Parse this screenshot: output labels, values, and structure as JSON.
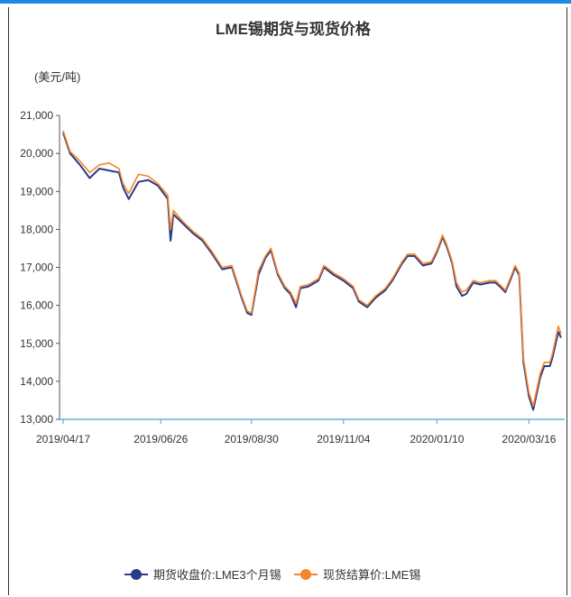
{
  "chart_data": {
    "type": "line",
    "title": "LME锡期货与现货价格",
    "ylabel": "(美元/吨)",
    "ylim": [
      13000,
      21000
    ],
    "yticks": [
      "21,000",
      "20,000",
      "19,000",
      "18,000",
      "17,000",
      "16,000",
      "15,000",
      "14,000",
      "13,000"
    ],
    "xticks": [
      "2019/04/17",
      "2019/06/26",
      "2019/08/30",
      "2019/11/04",
      "2020/01/10",
      "2020/03/16"
    ],
    "legend_position": "bottom",
    "series": [
      {
        "name": "期货收盘价:LME3个月锡",
        "color": "#2b3a85",
        "points": [
          [
            "2019/04/17",
            20550
          ],
          [
            "2019/04/22",
            20000
          ],
          [
            "2019/04/29",
            19700
          ],
          [
            "2019/05/06",
            19350
          ],
          [
            "2019/05/13",
            19600
          ],
          [
            "2019/05/20",
            19550
          ],
          [
            "2019/05/27",
            19500
          ],
          [
            "2019/05/30",
            19100
          ],
          [
            "2019/06/03",
            18800
          ],
          [
            "2019/06/10",
            19250
          ],
          [
            "2019/06/17",
            19300
          ],
          [
            "2019/06/24",
            19150
          ],
          [
            "2019/07/01",
            18800
          ],
          [
            "2019/07/03",
            17700
          ],
          [
            "2019/07/05",
            18400
          ],
          [
            "2019/07/12",
            18150
          ],
          [
            "2019/07/19",
            17900
          ],
          [
            "2019/07/26",
            17700
          ],
          [
            "2019/08/02",
            17350
          ],
          [
            "2019/08/09",
            16950
          ],
          [
            "2019/08/16",
            17000
          ],
          [
            "2019/08/23",
            16200
          ],
          [
            "2019/08/27",
            15800
          ],
          [
            "2019/08/30",
            15750
          ],
          [
            "2019/09/04",
            16800
          ],
          [
            "2019/09/09",
            17250
          ],
          [
            "2019/09/13",
            17450
          ],
          [
            "2019/09/18",
            16800
          ],
          [
            "2019/09/23",
            16450
          ],
          [
            "2019/09/27",
            16300
          ],
          [
            "2019/10/01",
            15950
          ],
          [
            "2019/10/04",
            16450
          ],
          [
            "2019/10/10",
            16500
          ],
          [
            "2019/10/17",
            16650
          ],
          [
            "2019/10/21",
            17000
          ],
          [
            "2019/10/28",
            16800
          ],
          [
            "2019/11/04",
            16650
          ],
          [
            "2019/11/11",
            16450
          ],
          [
            "2019/11/15",
            16100
          ],
          [
            "2019/11/21",
            15950
          ],
          [
            "2019/11/27",
            16200
          ],
          [
            "2019/12/04",
            16400
          ],
          [
            "2019/12/09",
            16650
          ],
          [
            "2019/12/16",
            17100
          ],
          [
            "2019/12/20",
            17300
          ],
          [
            "2019/12/25",
            17300
          ],
          [
            "2019/12/31",
            17050
          ],
          [
            "2020/01/06",
            17100
          ],
          [
            "2020/01/10",
            17400
          ],
          [
            "2020/01/14",
            17800
          ],
          [
            "2020/01/17",
            17550
          ],
          [
            "2020/01/21",
            17100
          ],
          [
            "2020/01/24",
            16500
          ],
          [
            "2020/01/28",
            16250
          ],
          [
            "2020/01/31",
            16300
          ],
          [
            "2020/02/05",
            16600
          ],
          [
            "2020/02/10",
            16550
          ],
          [
            "2020/02/17",
            16600
          ],
          [
            "2020/02/21",
            16600
          ],
          [
            "2020/02/24",
            16500
          ],
          [
            "2020/02/28",
            16350
          ],
          [
            "2020/03/03",
            16700
          ],
          [
            "2020/03/06",
            17000
          ],
          [
            "2020/03/09",
            16800
          ],
          [
            "2020/03/12",
            14500
          ],
          [
            "2020/03/16",
            13600
          ],
          [
            "2020/03/19",
            13250
          ],
          [
            "2020/03/24",
            14100
          ],
          [
            "2020/03/27",
            14400
          ],
          [
            "2020/03/31",
            14400
          ],
          [
            "2020/04/02",
            14650
          ],
          [
            "2020/04/06",
            15300
          ],
          [
            "2020/04/08",
            15150
          ]
        ]
      },
      {
        "name": "现货结算价:LME锡",
        "color": "#f5852a",
        "points": [
          [
            "2019/04/17",
            20600
          ],
          [
            "2019/04/22",
            20050
          ],
          [
            "2019/04/29",
            19800
          ],
          [
            "2019/05/06",
            19500
          ],
          [
            "2019/05/13",
            19700
          ],
          [
            "2019/05/20",
            19750
          ],
          [
            "2019/05/27",
            19600
          ],
          [
            "2019/05/30",
            19200
          ],
          [
            "2019/06/03",
            18950
          ],
          [
            "2019/06/10",
            19450
          ],
          [
            "2019/06/17",
            19400
          ],
          [
            "2019/06/24",
            19200
          ],
          [
            "2019/07/01",
            18900
          ],
          [
            "2019/07/03",
            18000
          ],
          [
            "2019/07/05",
            18500
          ],
          [
            "2019/07/12",
            18200
          ],
          [
            "2019/07/19",
            17950
          ],
          [
            "2019/07/26",
            17750
          ],
          [
            "2019/08/02",
            17400
          ],
          [
            "2019/08/09",
            17000
          ],
          [
            "2019/08/16",
            17050
          ],
          [
            "2019/08/23",
            16250
          ],
          [
            "2019/08/27",
            15850
          ],
          [
            "2019/08/30",
            15800
          ],
          [
            "2019/09/04",
            16900
          ],
          [
            "2019/09/09",
            17300
          ],
          [
            "2019/09/13",
            17500
          ],
          [
            "2019/09/18",
            16850
          ],
          [
            "2019/09/23",
            16500
          ],
          [
            "2019/09/27",
            16350
          ],
          [
            "2019/10/01",
            16050
          ],
          [
            "2019/10/04",
            16500
          ],
          [
            "2019/10/10",
            16550
          ],
          [
            "2019/10/17",
            16700
          ],
          [
            "2019/10/21",
            17050
          ],
          [
            "2019/10/28",
            16850
          ],
          [
            "2019/11/04",
            16700
          ],
          [
            "2019/11/11",
            16500
          ],
          [
            "2019/11/15",
            16150
          ],
          [
            "2019/11/21",
            16000
          ],
          [
            "2019/11/27",
            16250
          ],
          [
            "2019/12/04",
            16450
          ],
          [
            "2019/12/09",
            16700
          ],
          [
            "2019/12/16",
            17150
          ],
          [
            "2019/12/20",
            17350
          ],
          [
            "2019/12/25",
            17350
          ],
          [
            "2019/12/31",
            17100
          ],
          [
            "2020/01/06",
            17150
          ],
          [
            "2020/01/10",
            17450
          ],
          [
            "2020/01/14",
            17850
          ],
          [
            "2020/01/17",
            17600
          ],
          [
            "2020/01/21",
            17150
          ],
          [
            "2020/01/24",
            16600
          ],
          [
            "2020/01/28",
            16350
          ],
          [
            "2020/01/31",
            16400
          ],
          [
            "2020/02/05",
            16650
          ],
          [
            "2020/02/10",
            16600
          ],
          [
            "2020/02/17",
            16650
          ],
          [
            "2020/02/21",
            16650
          ],
          [
            "2020/02/24",
            16550
          ],
          [
            "2020/02/28",
            16400
          ],
          [
            "2020/03/03",
            16750
          ],
          [
            "2020/03/06",
            17050
          ],
          [
            "2020/03/09",
            16850
          ],
          [
            "2020/03/12",
            14600
          ],
          [
            "2020/03/16",
            13700
          ],
          [
            "2020/03/19",
            13350
          ],
          [
            "2020/03/24",
            14200
          ],
          [
            "2020/03/27",
            14500
          ],
          [
            "2020/03/31",
            14500
          ],
          [
            "2020/04/02",
            14750
          ],
          [
            "2020/04/06",
            15450
          ],
          [
            "2020/04/08",
            15250
          ]
        ]
      }
    ]
  }
}
